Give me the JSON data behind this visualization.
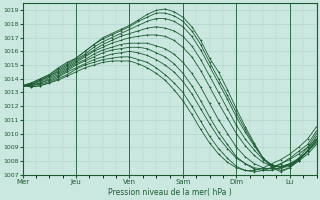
{
  "bg_color": "#cbe8e0",
  "plot_bg_color": "#cbe8e0",
  "grid_color": "#aacfc7",
  "line_color": "#1a5c30",
  "ylim": [
    1007,
    1019.5
  ],
  "yticks": [
    1007,
    1008,
    1009,
    1010,
    1011,
    1012,
    1013,
    1014,
    1015,
    1016,
    1017,
    1018,
    1019
  ],
  "xlabel": "Pression niveau de la mer( hPa )",
  "xtick_labels": [
    "Mer",
    "Jeu",
    "Ven",
    "Sam",
    "Dim",
    "Lu"
  ],
  "xtick_positions": [
    0,
    24,
    48,
    72,
    96,
    120
  ],
  "total_hours": 132,
  "series": [
    {
      "x": [
        0,
        4,
        8,
        12,
        16,
        20,
        24,
        28,
        32,
        36,
        40,
        44,
        48,
        52,
        56,
        60,
        64,
        68,
        72,
        76,
        80,
        84,
        88,
        92,
        96,
        100,
        104,
        108,
        112,
        116,
        120,
        124,
        128,
        132
      ],
      "y": [
        1013.5,
        1013.7,
        1014.0,
        1014.3,
        1014.8,
        1015.2,
        1015.5,
        1016.0,
        1016.5,
        1017.0,
        1017.3,
        1017.6,
        1017.9,
        1018.3,
        1018.7,
        1019.0,
        1019.1,
        1018.9,
        1018.5,
        1017.8,
        1016.8,
        1015.5,
        1014.5,
        1013.2,
        1011.8,
        1010.5,
        1009.3,
        1008.2,
        1007.5,
        1007.2,
        1007.5,
        1008.2,
        1009.0,
        1010.0
      ]
    },
    {
      "x": [
        0,
        4,
        8,
        12,
        16,
        20,
        24,
        28,
        32,
        36,
        40,
        44,
        48,
        52,
        56,
        60,
        64,
        68,
        72,
        76,
        80,
        84,
        88,
        92,
        96,
        100,
        104,
        108,
        112,
        116,
        120,
        124,
        128,
        132
      ],
      "y": [
        1013.5,
        1013.7,
        1014.0,
        1014.3,
        1014.7,
        1015.1,
        1015.5,
        1016.0,
        1016.5,
        1016.9,
        1017.2,
        1017.5,
        1017.8,
        1018.2,
        1018.5,
        1018.8,
        1018.8,
        1018.6,
        1018.2,
        1017.5,
        1016.5,
        1015.2,
        1014.0,
        1012.8,
        1011.5,
        1010.3,
        1009.2,
        1008.2,
        1007.6,
        1007.3,
        1007.5,
        1008.0,
        1008.8,
        1009.8
      ]
    },
    {
      "x": [
        0,
        4,
        8,
        12,
        16,
        20,
        24,
        28,
        32,
        36,
        40,
        44,
        48,
        52,
        56,
        60,
        64,
        68,
        72,
        76,
        80,
        84,
        88,
        92,
        96,
        100,
        104,
        108,
        112,
        116,
        120,
        124,
        128,
        132
      ],
      "y": [
        1013.5,
        1013.6,
        1013.9,
        1014.2,
        1014.6,
        1015.0,
        1015.4,
        1015.8,
        1016.3,
        1016.7,
        1017.0,
        1017.3,
        1017.6,
        1017.9,
        1018.2,
        1018.4,
        1018.4,
        1018.2,
        1017.8,
        1017.1,
        1016.1,
        1014.9,
        1013.7,
        1012.5,
        1011.2,
        1010.1,
        1009.1,
        1008.2,
        1007.7,
        1007.5,
        1007.6,
        1008.0,
        1008.7,
        1009.6
      ]
    },
    {
      "x": [
        0,
        4,
        8,
        12,
        16,
        20,
        24,
        28,
        32,
        36,
        40,
        44,
        48,
        52,
        56,
        60,
        64,
        68,
        72,
        76,
        80,
        84,
        88,
        92,
        96,
        100,
        104,
        108,
        112,
        116,
        120,
        124,
        128,
        132
      ],
      "y": [
        1013.5,
        1013.6,
        1013.9,
        1014.2,
        1014.5,
        1014.9,
        1015.3,
        1015.7,
        1016.1,
        1016.5,
        1016.8,
        1017.1,
        1017.3,
        1017.5,
        1017.7,
        1017.8,
        1017.7,
        1017.5,
        1017.1,
        1016.4,
        1015.4,
        1014.2,
        1013.0,
        1011.8,
        1010.6,
        1009.6,
        1008.8,
        1008.1,
        1007.7,
        1007.6,
        1007.7,
        1008.1,
        1008.7,
        1009.5
      ]
    },
    {
      "x": [
        0,
        4,
        8,
        12,
        16,
        20,
        24,
        28,
        32,
        36,
        40,
        44,
        48,
        52,
        56,
        60,
        64,
        68,
        72,
        76,
        80,
        84,
        88,
        92,
        96,
        100,
        104,
        108,
        112,
        116,
        120,
        124,
        128,
        132
      ],
      "y": [
        1013.5,
        1013.6,
        1013.8,
        1014.1,
        1014.4,
        1014.8,
        1015.2,
        1015.6,
        1016.0,
        1016.3,
        1016.6,
        1016.8,
        1017.0,
        1017.1,
        1017.2,
        1017.2,
        1017.1,
        1016.8,
        1016.3,
        1015.6,
        1014.6,
        1013.4,
        1012.2,
        1011.1,
        1010.0,
        1009.1,
        1008.4,
        1007.9,
        1007.6,
        1007.6,
        1007.8,
        1008.1,
        1008.7,
        1009.4
      ]
    },
    {
      "x": [
        0,
        4,
        8,
        12,
        16,
        20,
        24,
        28,
        32,
        36,
        40,
        44,
        48,
        52,
        56,
        60,
        64,
        68,
        72,
        76,
        80,
        84,
        88,
        92,
        96,
        100,
        104,
        108,
        112,
        116,
        120,
        124,
        128,
        132
      ],
      "y": [
        1013.5,
        1013.5,
        1013.7,
        1014.0,
        1014.3,
        1014.7,
        1015.1,
        1015.4,
        1015.8,
        1016.1,
        1016.3,
        1016.5,
        1016.6,
        1016.6,
        1016.6,
        1016.4,
        1016.2,
        1015.8,
        1015.2,
        1014.4,
        1013.4,
        1012.2,
        1011.0,
        1010.0,
        1009.0,
        1008.3,
        1007.8,
        1007.5,
        1007.4,
        1007.5,
        1007.7,
        1008.0,
        1008.5,
        1009.2
      ]
    },
    {
      "x": [
        0,
        4,
        8,
        12,
        16,
        20,
        24,
        28,
        32,
        36,
        40,
        44,
        48,
        52,
        56,
        60,
        64,
        68,
        72,
        76,
        80,
        84,
        88,
        92,
        96,
        100,
        104,
        108,
        112,
        116,
        120,
        124,
        128,
        132
      ],
      "y": [
        1013.5,
        1013.5,
        1013.7,
        1013.9,
        1014.2,
        1014.6,
        1015.0,
        1015.3,
        1015.6,
        1015.9,
        1016.1,
        1016.2,
        1016.3,
        1016.3,
        1016.2,
        1015.9,
        1015.6,
        1015.1,
        1014.4,
        1013.5,
        1012.4,
        1011.2,
        1010.1,
        1009.2,
        1008.3,
        1007.8,
        1007.4,
        1007.3,
        1007.3,
        1007.5,
        1007.8,
        1008.2,
        1008.7,
        1009.3
      ]
    },
    {
      "x": [
        0,
        4,
        8,
        12,
        16,
        20,
        24,
        28,
        32,
        36,
        40,
        44,
        48,
        52,
        56,
        60,
        64,
        68,
        72,
        76,
        80,
        84,
        88,
        92,
        96,
        100,
        104,
        108,
        112,
        116,
        120,
        124,
        128,
        132
      ],
      "y": [
        1013.5,
        1013.5,
        1013.6,
        1013.8,
        1014.1,
        1014.5,
        1014.8,
        1015.1,
        1015.4,
        1015.6,
        1015.8,
        1015.9,
        1016.0,
        1015.9,
        1015.7,
        1015.4,
        1015.0,
        1014.5,
        1013.8,
        1012.9,
        1011.8,
        1010.7,
        1009.7,
        1008.9,
        1008.2,
        1007.8,
        1007.5,
        1007.4,
        1007.5,
        1007.8,
        1008.1,
        1008.5,
        1009.0,
        1009.6
      ]
    },
    {
      "x": [
        0,
        4,
        8,
        12,
        16,
        20,
        24,
        28,
        32,
        36,
        40,
        44,
        48,
        52,
        56,
        60,
        64,
        68,
        72,
        76,
        80,
        84,
        88,
        92,
        96,
        100,
        104,
        108,
        112,
        116,
        120,
        124,
        128,
        132
      ],
      "y": [
        1013.5,
        1013.4,
        1013.5,
        1013.7,
        1014.0,
        1014.3,
        1014.7,
        1015.0,
        1015.2,
        1015.4,
        1015.5,
        1015.6,
        1015.6,
        1015.4,
        1015.2,
        1014.8,
        1014.3,
        1013.7,
        1013.0,
        1012.0,
        1010.9,
        1009.8,
        1008.9,
        1008.2,
        1007.6,
        1007.3,
        1007.2,
        1007.3,
        1007.5,
        1007.8,
        1008.2,
        1008.7,
        1009.2,
        1010.2
      ]
    },
    {
      "x": [
        0,
        4,
        8,
        12,
        16,
        20,
        24,
        28,
        32,
        36,
        40,
        44,
        48,
        52,
        56,
        60,
        64,
        68,
        72,
        76,
        80,
        84,
        88,
        92,
        96,
        100,
        104,
        108,
        112,
        116,
        120,
        124,
        128,
        132
      ],
      "y": [
        1013.5,
        1013.4,
        1013.5,
        1013.7,
        1013.9,
        1014.2,
        1014.5,
        1014.8,
        1015.0,
        1015.2,
        1015.3,
        1015.3,
        1015.3,
        1015.1,
        1014.8,
        1014.4,
        1013.9,
        1013.2,
        1012.4,
        1011.4,
        1010.3,
        1009.3,
        1008.5,
        1007.9,
        1007.5,
        1007.3,
        1007.3,
        1007.5,
        1007.8,
        1008.1,
        1008.5,
        1009.0,
        1009.6,
        1010.5
      ]
    }
  ]
}
